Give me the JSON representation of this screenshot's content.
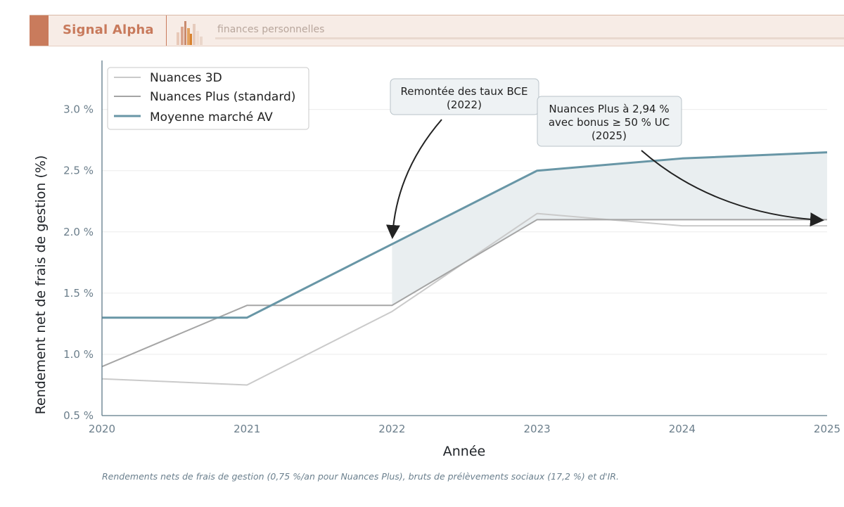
{
  "header": {
    "brand": "Signal Alpha",
    "tagline": "finances personnelles"
  },
  "colors": {
    "brand": "#c97b5c",
    "market": "#6896a6",
    "plus": "#a5a5a5",
    "nuances3d": "#cacaca",
    "fill": "#e9eef0"
  },
  "chart_data": {
    "type": "line",
    "x": [
      2020,
      2021,
      2022,
      2023,
      2024,
      2025
    ],
    "xlabel": "Année",
    "ylabel": "Rendement net de frais de gestion (%)",
    "xlim": [
      2020,
      2025
    ],
    "ylim": [
      0.5,
      3.4
    ],
    "yticks": [
      "0.5 %",
      "1.0 %",
      "1.5 %",
      "2.0 %",
      "2.5 %",
      "3.0 %"
    ],
    "ytick_values": [
      0.5,
      1.0,
      1.5,
      2.0,
      2.5,
      3.0
    ],
    "xticks": [
      "2020",
      "2021",
      "2022",
      "2023",
      "2024",
      "2025"
    ],
    "grid": "horizontal",
    "legend_position": "top-left",
    "series": [
      {
        "name": "Nuances 3D",
        "values": [
          0.8,
          0.75,
          1.35,
          2.15,
          2.05,
          2.05
        ]
      },
      {
        "name": "Nuances Plus (standard)",
        "values": [
          0.9,
          1.4,
          1.4,
          2.1,
          2.1,
          2.1
        ]
      },
      {
        "name": "Moyenne marché AV",
        "values": [
          1.3,
          1.3,
          1.9,
          2.5,
          2.6,
          2.65
        ]
      }
    ],
    "shaded_region": {
      "from": 2022,
      "to": 2025,
      "between": [
        "Nuances Plus (standard)",
        "Moyenne marché AV"
      ]
    },
    "annotations": [
      {
        "lines": [
          "Remontée des taux BCE",
          "(2022)"
        ],
        "target": [
          2022,
          1.9
        ]
      },
      {
        "lines": [
          "Nuances Plus à 2,94 %",
          "avec bonus ≥ 50 % UC",
          "(2025)"
        ],
        "target": [
          2025,
          2.1
        ]
      }
    ]
  },
  "caption": "Rendements nets de frais de gestion (0,75 %/an pour Nuances Plus), bruts de prélèvements sociaux (17,2 %) et d'IR."
}
